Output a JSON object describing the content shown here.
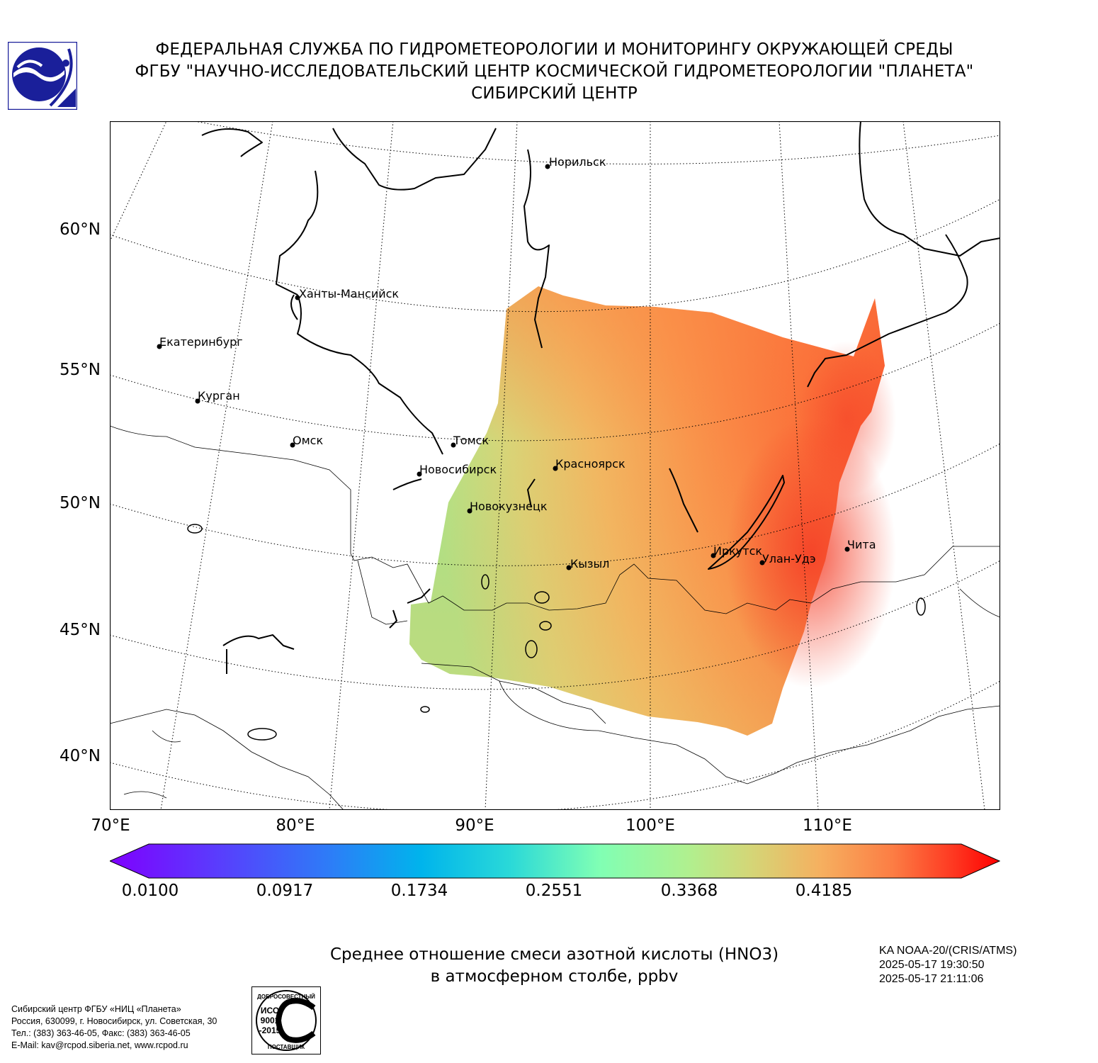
{
  "header": {
    "line1": "ФЕДЕРАЛЬНАЯ СЛУЖБА ПО ГИДРОМЕТЕОРОЛОГИИ И МОНИТОРИНГУ ОКРУЖАЮЩЕЙ СРЕДЫ",
    "line2": "ФГБУ \"НАУЧНО-ИССЛЕДОВАТЕЛЬСКИЙ ЦЕНТР КОСМИЧЕСКОЙ ГИДРОМЕТЕОРОЛОГИИ \"ПЛАНЕТА\"",
    "line3": "СИБИРСКИЙ ЦЕНТР"
  },
  "map": {
    "lat_labels": [
      "60°N",
      "55°N",
      "50°N",
      "45°N",
      "40°N"
    ],
    "lon_labels": [
      "70°E",
      "80°E",
      "90°E",
      "100°E",
      "110°E"
    ],
    "cities": [
      {
        "name": "Норильск"
      },
      {
        "name": "Ханты-Мансийск"
      },
      {
        "name": "Екатеринбург"
      },
      {
        "name": "Курган"
      },
      {
        "name": "Омск"
      },
      {
        "name": "Томск"
      },
      {
        "name": "Новосибирск"
      },
      {
        "name": "Красноярск"
      },
      {
        "name": "Новокузнецк"
      },
      {
        "name": "Кызыл"
      },
      {
        "name": "Иркутск"
      },
      {
        "name": "Улан-Удэ"
      },
      {
        "name": "Чита"
      }
    ]
  },
  "colorbar": {
    "ticks": [
      "0.0100",
      "0.0917",
      "0.1734",
      "0.2551",
      "0.3368",
      "0.4185"
    ],
    "colors": {
      "min": "#7f00ff",
      "mid": "#80ffb4",
      "max": "#ff0000"
    }
  },
  "caption": {
    "line1": "Среднее отношение смеси азотной кислоты (HNO3)",
    "line2": "в атмосферном столбе, ppbv"
  },
  "satellite": {
    "name": "KA NOAA-20/(CRIS/ATMS)",
    "time_start": "2025-05-17 19:30:50",
    "time_end": "2025-05-17 21:11:06"
  },
  "contact": {
    "line1": "Сибирский центр ФГБУ «НИЦ «Планета»",
    "line2": "Россия, 630099, г. Новосибирск, ул. Советская, 30",
    "line3": "Тел.: (383) 363-46-05, Факс: (383) 363-46-05",
    "line4": "E-Mail: kav@rcpod.siberia.net, www.rcpod.ru"
  },
  "iso_badge": {
    "top": "ДОБРОСОВЕСТНЫЙ",
    "mid1": "ИСО",
    "mid2": "9001",
    "mid3": "-2015",
    "bottom": "ПОСТАВЩИК"
  }
}
